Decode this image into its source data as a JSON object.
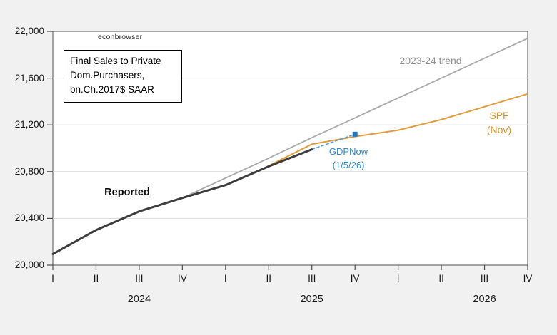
{
  "page": {
    "background": "#f1f1f1",
    "plot_background": "#ffffff",
    "watermark": "econbrowser"
  },
  "title_box": {
    "text": "Final Sales to Private\nDom.Purchasers,\nbn.Ch.2017$ SAAR"
  },
  "annotations": {
    "trend_label": "2023-24 trend",
    "reported_label": "Reported",
    "spf_label": "SPF\n(Nov)",
    "gdpnow_label": "GDPNow\n(1/5/26)"
  },
  "chart_data": {
    "type": "line",
    "title": "Final Sales to Private Dom.Purchasers, bn.Ch.2017$ SAAR",
    "xlabel": "",
    "ylabel": "",
    "grid": "horizontal",
    "legend_position": "inline-labels",
    "ylim": [
      20000,
      22000
    ],
    "y_ticks": [
      20000,
      20400,
      20800,
      21200,
      21600,
      22000
    ],
    "y_tick_labels": [
      "20,000",
      "20,400",
      "20,800",
      "21,200",
      "21,600",
      "22,000"
    ],
    "x_categories": [
      "2024Q1",
      "2024Q2",
      "2024Q3",
      "2024Q4",
      "2025Q1",
      "2025Q2",
      "2025Q3",
      "2025Q4",
      "2026Q1",
      "2026Q2",
      "2026Q3",
      "2026Q4"
    ],
    "x_tick_labels": [
      "I",
      "II",
      "III",
      "IV",
      "I",
      "II",
      "III",
      "IV",
      "I",
      "II",
      "III",
      "IV"
    ],
    "year_labels": [
      {
        "label": "2024",
        "tick_index": 2
      },
      {
        "label": "2025",
        "tick_index": 6
      },
      {
        "label": "2026",
        "tick_index": 10
      }
    ],
    "series": [
      {
        "name": "2023-24 trend",
        "color": "#a9a9a9",
        "width": 1.8,
        "values": [
          null,
          null,
          null,
          20575,
          20745,
          20915,
          21090,
          21260,
          21430,
          21600,
          21770,
          21940
        ]
      },
      {
        "name": "SPF (Nov)",
        "color": "#e09c3c",
        "width": 2,
        "values": [
          null,
          null,
          null,
          null,
          null,
          20850,
          21035,
          21100,
          21155,
          21245,
          21355,
          21465
        ]
      },
      {
        "name": "GDPNow (1/5/26)",
        "color": "#4a9bd5",
        "width": 1.4,
        "dash": "4 3",
        "marker": "square-last",
        "marker_color": "#2878be",
        "marker_size": 7,
        "values": [
          null,
          null,
          null,
          null,
          null,
          null,
          20990,
          21120,
          null,
          null,
          null,
          null
        ]
      },
      {
        "name": "Reported",
        "color": "#3d3d3d",
        "width": 3,
        "values": [
          20095,
          20300,
          20460,
          20575,
          20685,
          20845,
          20990,
          null,
          null,
          null,
          null,
          null
        ]
      }
    ]
  }
}
